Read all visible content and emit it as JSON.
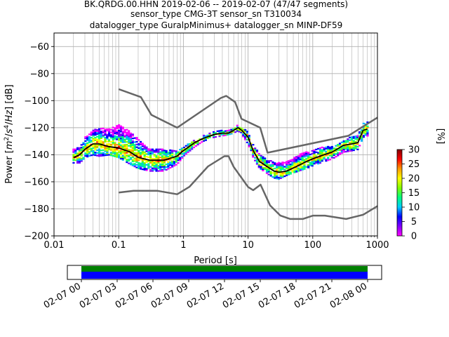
{
  "title": {
    "line1": "BK.QRDG.00.HHN   2019-02-06 -- 2019-02-07  (47/47 segments)",
    "line2": "sensor_type CMG-3T sensor_sn T310034",
    "line3": "datalogger_type GuralpMinimus+ datalogger_sn MINP-DF59"
  },
  "colorbar": {
    "label": "[%]",
    "ticks": [
      0,
      5,
      10,
      15,
      20,
      25,
      30
    ],
    "tick_labels": [
      "0",
      "5",
      "10",
      "15",
      "20",
      "25",
      "30"
    ],
    "colors": [
      "#ff00ff",
      "#7f00ff",
      "#0000ff",
      "#00b3ff",
      "#00ff7f",
      "#7fff00",
      "#ffff00",
      "#ff9900",
      "#ff0000",
      "#000000"
    ]
  },
  "timeline": {
    "tick_labels": [
      "02-07 00",
      "02-07 03",
      "02-07 06",
      "02-07 09",
      "02-07 12",
      "02-07 15",
      "02-07 18",
      "02-07 21",
      "02-08 00"
    ],
    "coverage_color": "#008000",
    "data_color": "#0000ff"
  },
  "chart_data": {
    "type": "heatmap",
    "xlabel": "Period [s]",
    "ylabel_parts": [
      "Power [",
      "m",
      "2",
      "/",
      "s",
      "4",
      "/",
      "Hz",
      "] [dB]"
    ],
    "xscale": "log",
    "xlim": [
      0.01,
      1000
    ],
    "ylim": [
      -200,
      -50
    ],
    "x_ticks": [
      0.01,
      0.1,
      1,
      10,
      100,
      1000
    ],
    "x_tick_labels": [
      "0.01",
      "0.1",
      "1",
      "10",
      "100",
      "1000"
    ],
    "y_ticks": [
      -200,
      -180,
      -160,
      -140,
      -120,
      -100,
      -80,
      -60
    ],
    "y_tick_labels": [
      "−200",
      "−180",
      "−160",
      "−140",
      "−120",
      "−100",
      "−80",
      "−60"
    ],
    "grid": true,
    "nhnm": {
      "name": "NHNM",
      "x": [
        0.1,
        0.22,
        0.32,
        0.8,
        3.8,
        4.6,
        6.3,
        7.9,
        15.4,
        20,
        354.8,
        1000
      ],
      "y": [
        -91.5,
        -97.4,
        -110.5,
        -120,
        -98,
        -96.5,
        -101,
        -113.5,
        -120,
        -138.5,
        -126,
        -112.5
      ]
    },
    "nlnm": {
      "name": "NLNM",
      "x": [
        0.1,
        0.17,
        0.4,
        0.8,
        1.24,
        2.4,
        4.3,
        5,
        6,
        10,
        12,
        15.6,
        21.9,
        31.6,
        45,
        70,
        101,
        154,
        328,
        600,
        1000
      ],
      "y": [
        -168,
        -166.7,
        -166.7,
        -169.2,
        -163.7,
        -148.6,
        -141.1,
        -141.1,
        -149,
        -163.8,
        -166.2,
        -162.1,
        -177.5,
        -185,
        -187.5,
        -187.5,
        -185,
        -185,
        -187.5,
        -184.4,
        -178
      ]
    },
    "mode": {
      "name": "mode",
      "x": [
        0.02,
        0.025,
        0.03,
        0.04,
        0.05,
        0.07,
        0.1,
        0.15,
        0.2,
        0.3,
        0.5,
        0.8,
        1,
        1.5,
        2,
        3,
        4,
        5,
        6,
        7,
        8,
        10,
        12,
        15,
        20,
        25,
        30,
        40,
        60,
        80,
        100,
        150,
        200,
        300,
        400,
        500,
        600,
        700
      ],
      "y": [
        -142,
        -140,
        -136,
        -132,
        -132,
        -134,
        -135,
        -138,
        -142,
        -144,
        -144,
        -141,
        -137,
        -131,
        -128,
        -125,
        -124,
        -124,
        -122,
        -120,
        -122,
        -127,
        -137,
        -145,
        -149,
        -152,
        -153,
        -152,
        -148,
        -145,
        -143,
        -140,
        -138,
        -133,
        -132,
        -131,
        -122,
        -121
      ]
    },
    "density": {
      "x": [
        0.02,
        0.025,
        0.03,
        0.04,
        0.05,
        0.07,
        0.1,
        0.15,
        0.2,
        0.3,
        0.5,
        0.8,
        1,
        1.5,
        2,
        3,
        4,
        5,
        6,
        7,
        8,
        10,
        12,
        15,
        20,
        25,
        30,
        40,
        60,
        80,
        100,
        150,
        200,
        300,
        400,
        500,
        600,
        700
      ],
      "upper": [
        -136,
        -134,
        -127,
        -122,
        -120,
        -121,
        -117,
        -123,
        -128,
        -136,
        -136,
        -137,
        -134,
        -129,
        -126,
        -123,
        -122,
        -122,
        -120,
        -118,
        -120,
        -123,
        -133,
        -139,
        -144,
        -145,
        -146,
        -145,
        -140,
        -138,
        -137,
        -134,
        -134,
        -130,
        -126,
        -126,
        -116,
        -116
      ],
      "lower": [
        -146,
        -146,
        -142,
        -140,
        -141,
        -140,
        -142,
        -147,
        -150,
        -152,
        -152,
        -147,
        -141,
        -134,
        -130,
        -127,
        -126,
        -125,
        -124,
        -122,
        -125,
        -132,
        -142,
        -150,
        -154,
        -157,
        -158,
        -155,
        -152,
        -150,
        -148,
        -145,
        -143,
        -138,
        -137,
        -136,
        -127,
        -126
      ]
    }
  }
}
